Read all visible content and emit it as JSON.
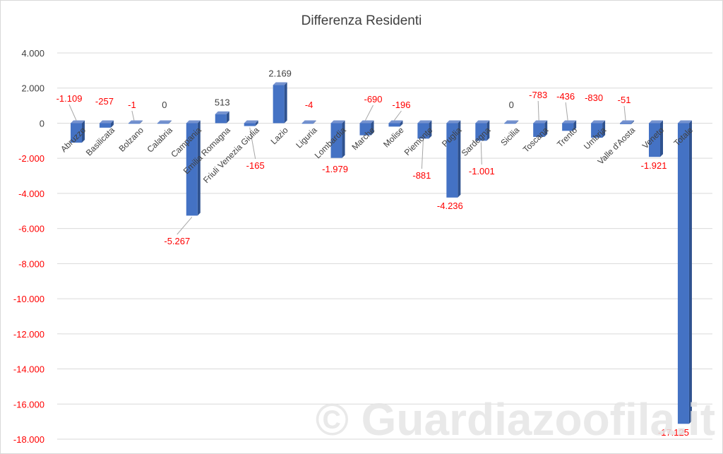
{
  "chart_data": {
    "type": "bar",
    "title": "Differenza Residenti",
    "xlabel": "",
    "ylabel": "",
    "ylim": [
      -18000,
      4000
    ],
    "ytick_step": 2000,
    "grid": true,
    "legend": "none",
    "categories": [
      "Abruzzo",
      "Basilicata",
      "Bolzano",
      "Calabria",
      "Campania",
      "Emilia Romagna",
      "Friuli Venezia Giulia",
      "Lazio",
      "Liguria",
      "Lombardia",
      "Marche",
      "Molise",
      "Piemonte",
      "Puglia",
      "Sardegna",
      "Sicilia",
      "Toscana",
      "Trento",
      "Umbria",
      "Valle d'Aosta",
      "Veneto",
      "Totale"
    ],
    "values": [
      -1109,
      -257,
      -1,
      0,
      -5267,
      513,
      -165,
      2169,
      -4,
      -1979,
      -690,
      -196,
      -881,
      -4236,
      -1001,
      0,
      -783,
      -436,
      -830,
      -51,
      -1921,
      -17125
    ],
    "data_labels": [
      "-1.109",
      "-257",
      "-1",
      "0",
      "-5.267",
      "513",
      "-165",
      "2.169",
      "-4",
      "-1.979",
      "-690",
      "-196",
      "-881",
      "-4.236",
      "-1.001",
      "0",
      "-783",
      "-436",
      "-830",
      "-51",
      "-1.921",
      "-17.125"
    ],
    "ytick_labels": [
      "4.000",
      "2.000",
      "0",
      "-2.000",
      "-4.000",
      "-6.000",
      "-8.000",
      "-10.000",
      "-12.000",
      "-14.000",
      "-16.000",
      "-18.000"
    ],
    "colors": {
      "bar_front": "#4472c4",
      "bar_side": "#2f528f",
      "bar_top": "#7592cf",
      "negative_text": "#ff0000",
      "positive_text": "#404040",
      "grid": "#d9d9d9"
    }
  },
  "watermark": "© Guardiazoofila.it"
}
